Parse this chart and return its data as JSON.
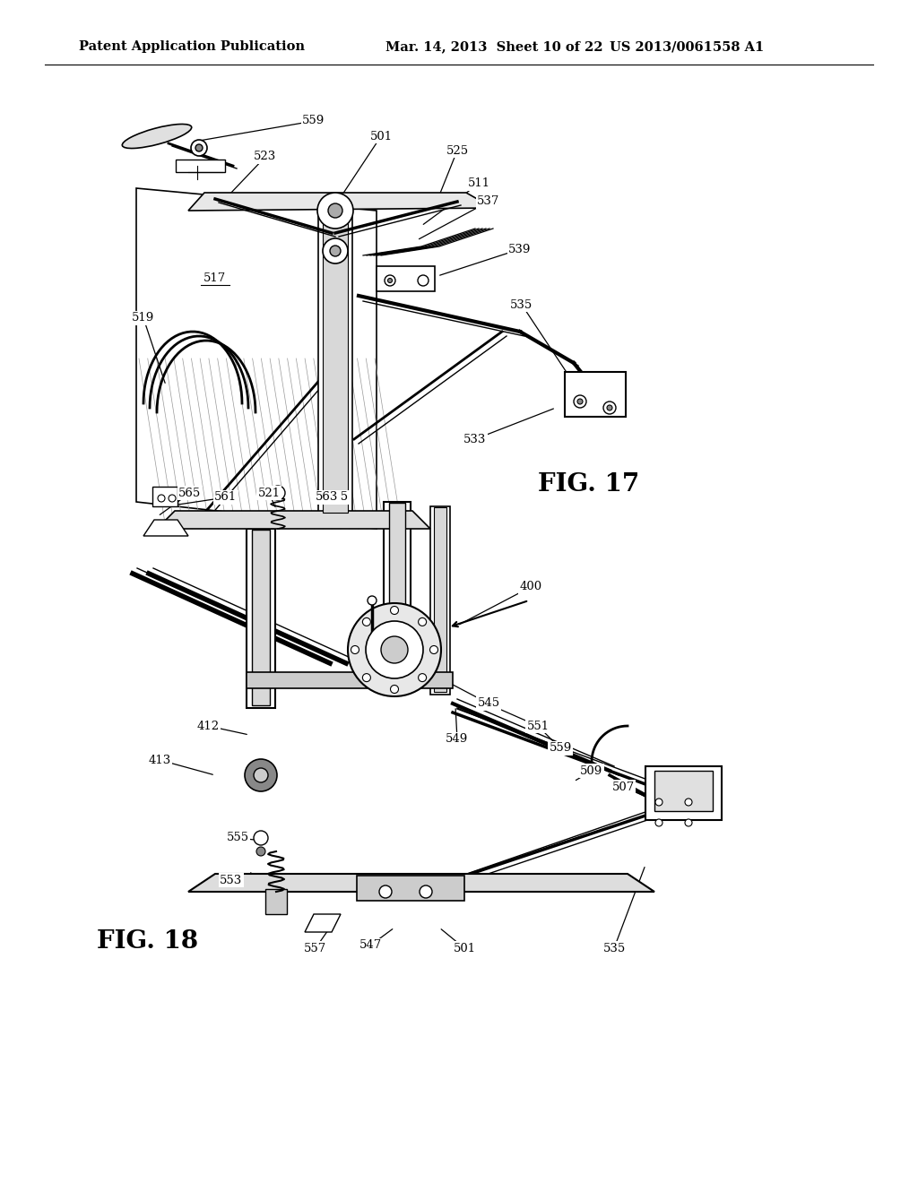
{
  "background_color": "#ffffff",
  "header_left": "Patent Application Publication",
  "header_center": "Mar. 14, 2013  Sheet 10 of 22",
  "header_right": "US 2013/0061558 A1",
  "fig17_label": "FIG. 17",
  "fig18_label": "FIG. 18",
  "title_fontsize": 10.5,
  "fig_label_fontsize": 20,
  "ref_fontsize": 9.5
}
